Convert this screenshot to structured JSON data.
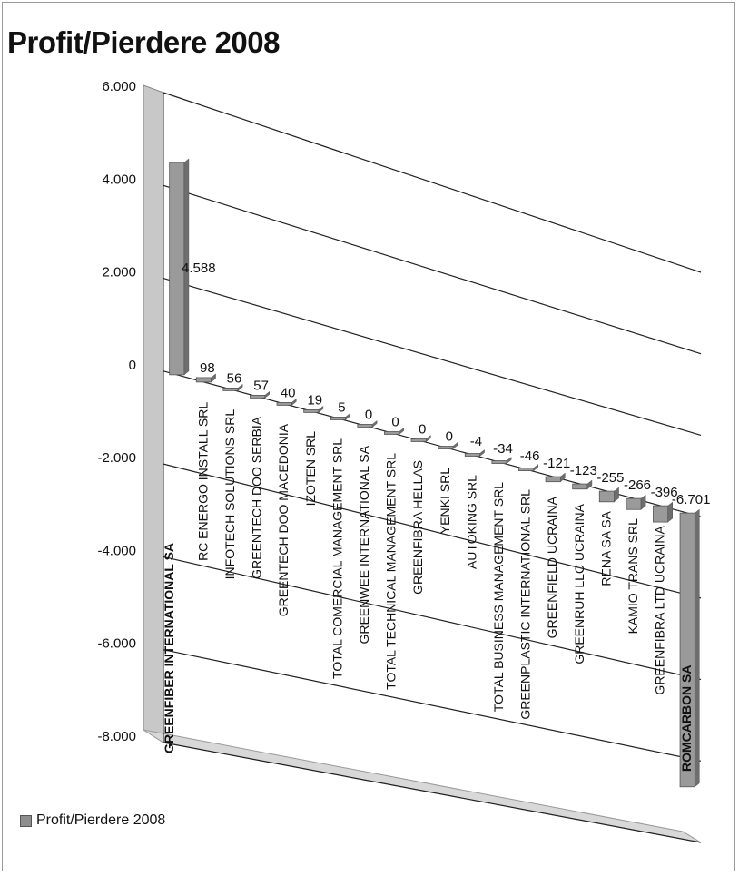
{
  "colors": {
    "bar": "#9a9a9a",
    "bar_dark": "#6e6e6e",
    "grid": "#222222",
    "wall": "#c8c8c8"
  },
  "chart_data": {
    "type": "bar",
    "title": "Profit/Pierdere 2008",
    "xlabel": "",
    "ylabel": "",
    "ylim": [
      -8000,
      6000
    ],
    "yticks": [
      "6.000",
      "4.000",
      "2.000",
      "0",
      "-2.000",
      "-4.000",
      "-6.000",
      "-8.000"
    ],
    "ytick_values": [
      6000,
      4000,
      2000,
      0,
      -2000,
      -4000,
      -6000,
      -8000
    ],
    "grid": true,
    "legend_position": "bottom-left",
    "categories": [
      "GREENFIBER INTERNATIONAL SA",
      "RC ENERGO INSTALL SRL",
      "INFOTECH SOLUTIONS SRL",
      "GREENTECH DOO SERBIA",
      "GREENTECH DOO MACEDONIA",
      "IZOTEN SRL",
      "TOTAL COMERCIAL MANAGEMENT SRL",
      "GREENWEE INTERNATIONAL SA",
      "TOTAL TECHNICAL MANAGEMENT SRL",
      "GREENFIBRA HELLAS",
      "YENKI SRL",
      "AUTOKING SRL",
      "TOTAL BUSINESS MANAGEMENT SRL",
      "GREENPLASTIC INTERNATIONAL SRL",
      "GREENFIELD UCRAINA",
      "GREENRUH LLC UCRAINA",
      "RENA SA SA",
      "KAMIO TRANS SRL",
      "GREENFIBRA LTD UCRAINA",
      "ROMCARBON SA"
    ],
    "series": [
      {
        "name": "Profit/Pierdere 2008",
        "values": [
          4588,
          98,
          56,
          57,
          40,
          19,
          5,
          0,
          0,
          0,
          0,
          -4,
          -34,
          -46,
          -121,
          -123,
          -255,
          -266,
          -396,
          -6701
        ],
        "labels": [
          "4.588",
          "98",
          "56",
          "57",
          "40",
          "19",
          "5",
          "0",
          "0",
          "0",
          "0",
          "-4",
          "-34",
          "-46",
          "-121",
          "-123",
          "-255",
          "-266",
          "-396",
          "-6.701"
        ]
      }
    ]
  }
}
